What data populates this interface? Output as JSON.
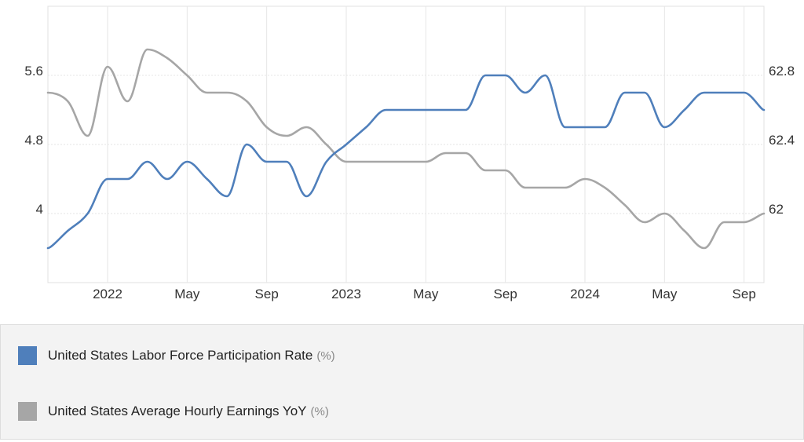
{
  "chart_data": {
    "type": "line",
    "x_tick_labels": [
      "2022",
      "May",
      "Sep",
      "2023",
      "May",
      "Sep",
      "2024",
      "May",
      "Sep"
    ],
    "x_tick_months": [
      "2022-01",
      "2022-05",
      "2022-09",
      "2023-01",
      "2023-05",
      "2023-09",
      "2024-01",
      "2024-05",
      "2024-09"
    ],
    "x_range": [
      "2021-10",
      "2024-10"
    ],
    "left_axis": {
      "ticks": [
        "4",
        "4.8",
        "5.6"
      ],
      "range": [
        3.2,
        6.4
      ]
    },
    "right_axis": {
      "ticks": [
        "62",
        "62.4",
        "62.8"
      ],
      "range": [
        61.6,
        63.2
      ]
    },
    "grid": true,
    "legend_position": "bottom",
    "series": [
      {
        "name": "United States Labor Force Participation Rate",
        "unit": "(%)",
        "axis": "right",
        "color": "#4f7fbb",
        "x": [
          "2021-10",
          "2021-11",
          "2021-12",
          "2022-01",
          "2022-02",
          "2022-03",
          "2022-04",
          "2022-05",
          "2022-06",
          "2022-07",
          "2022-08",
          "2022-09",
          "2022-10",
          "2022-11",
          "2022-12",
          "2023-01",
          "2023-02",
          "2023-03",
          "2023-04",
          "2023-05",
          "2023-06",
          "2023-07",
          "2023-08",
          "2023-09",
          "2023-10",
          "2023-11",
          "2023-12",
          "2024-01",
          "2024-02",
          "2024-03",
          "2024-04",
          "2024-05",
          "2024-06",
          "2024-07",
          "2024-08",
          "2024-09",
          "2024-10"
        ],
        "values": [
          61.8,
          61.9,
          62.0,
          62.2,
          62.2,
          62.3,
          62.2,
          62.3,
          62.2,
          62.1,
          62.4,
          62.3,
          62.3,
          62.1,
          62.3,
          62.4,
          62.5,
          62.6,
          62.6,
          62.6,
          62.6,
          62.6,
          62.8,
          62.8,
          62.7,
          62.8,
          62.5,
          62.5,
          62.5,
          62.7,
          62.7,
          62.5,
          62.6,
          62.7,
          62.7,
          62.7,
          62.6
        ]
      },
      {
        "name": "United States Average Hourly Earnings YoY",
        "unit": "(%)",
        "axis": "left",
        "color": "#a6a6a6",
        "x": [
          "2021-10",
          "2021-11",
          "2021-12",
          "2022-01",
          "2022-02",
          "2022-03",
          "2022-04",
          "2022-05",
          "2022-06",
          "2022-07",
          "2022-08",
          "2022-09",
          "2022-10",
          "2022-11",
          "2022-12",
          "2023-01",
          "2023-02",
          "2023-03",
          "2023-04",
          "2023-05",
          "2023-06",
          "2023-07",
          "2023-08",
          "2023-09",
          "2023-10",
          "2023-11",
          "2023-12",
          "2024-01",
          "2024-02",
          "2024-03",
          "2024-04",
          "2024-05",
          "2024-06",
          "2024-07",
          "2024-08",
          "2024-09",
          "2024-10"
        ],
        "values": [
          5.4,
          5.3,
          4.9,
          5.7,
          5.3,
          5.9,
          5.8,
          5.6,
          5.4,
          5.4,
          5.3,
          5.0,
          4.9,
          5.0,
          4.8,
          4.6,
          4.6,
          4.6,
          4.6,
          4.6,
          4.7,
          4.7,
          4.5,
          4.5,
          4.3,
          4.3,
          4.3,
          4.4,
          4.3,
          4.1,
          3.9,
          4.0,
          3.8,
          3.6,
          3.9,
          3.9,
          4.0
        ]
      }
    ]
  },
  "legend": {
    "items": [
      {
        "label": "United States Labor Force Participation Rate",
        "unit": "(%)",
        "color": "#4f7fbb"
      },
      {
        "label": "United States Average Hourly Earnings YoY",
        "unit": "(%)",
        "color": "#a6a6a6"
      }
    ]
  }
}
